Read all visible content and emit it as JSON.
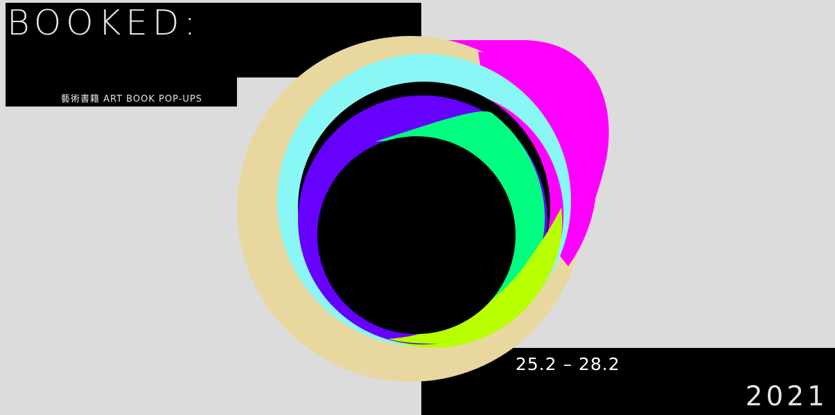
{
  "poster": {
    "title": "BOOKED:",
    "subtitle": "藝術書籍 ART BOOK POP-UPS",
    "dates": "25.2 – 28.2",
    "year": "2021"
  },
  "colors": {
    "background": "#dcdcdc",
    "black": "#000000",
    "beige": "#e8d8a0",
    "cyan": "#8af7f7",
    "magenta": "#ff00ff",
    "violet": "#6600ff",
    "green": "#00ff80",
    "lime": "#b8ff00"
  }
}
